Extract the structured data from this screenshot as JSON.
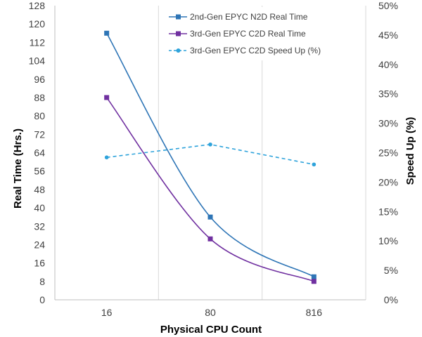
{
  "chart_data": {
    "type": "line",
    "x_categories": [
      "16",
      "80",
      "816"
    ],
    "xlabel": "Physical CPU Count",
    "ylabel_left": "Real Time (Hrs.)",
    "ylabel_right": "Speed Up (%)",
    "y_left_range": [
      0,
      128
    ],
    "y_left_ticks": [
      0,
      8,
      16,
      24,
      32,
      40,
      48,
      56,
      64,
      72,
      80,
      88,
      96,
      104,
      112,
      120,
      128
    ],
    "y_right_range": [
      0,
      50
    ],
    "y_right_ticks": [
      "0%",
      "5%",
      "10%",
      "15%",
      "20%",
      "25%",
      "30%",
      "35%",
      "40%",
      "45%",
      "50%"
    ],
    "grid": "vertical",
    "legend_position": "top-right",
    "series": [
      {
        "name": "2nd-Gen EPYC N2D Real Time",
        "axis": "left",
        "values": [
          116,
          36,
          10
        ],
        "color": "#2E75B6",
        "line_style": "solid",
        "marker": "square",
        "smooth": true
      },
      {
        "name": "3rd-Gen EPYC C2D Real Time",
        "axis": "left",
        "values": [
          88,
          26.5,
          8
        ],
        "color": "#7030A0",
        "line_style": "solid",
        "marker": "square",
        "smooth": true
      },
      {
        "name": "3rd-Gen EPYC C2D Speed Up (%)",
        "axis": "right",
        "values": [
          24.2,
          26.4,
          23.0
        ],
        "color": "#2EA3DB",
        "line_style": "dashed",
        "marker": "circle",
        "smooth": false
      }
    ]
  }
}
